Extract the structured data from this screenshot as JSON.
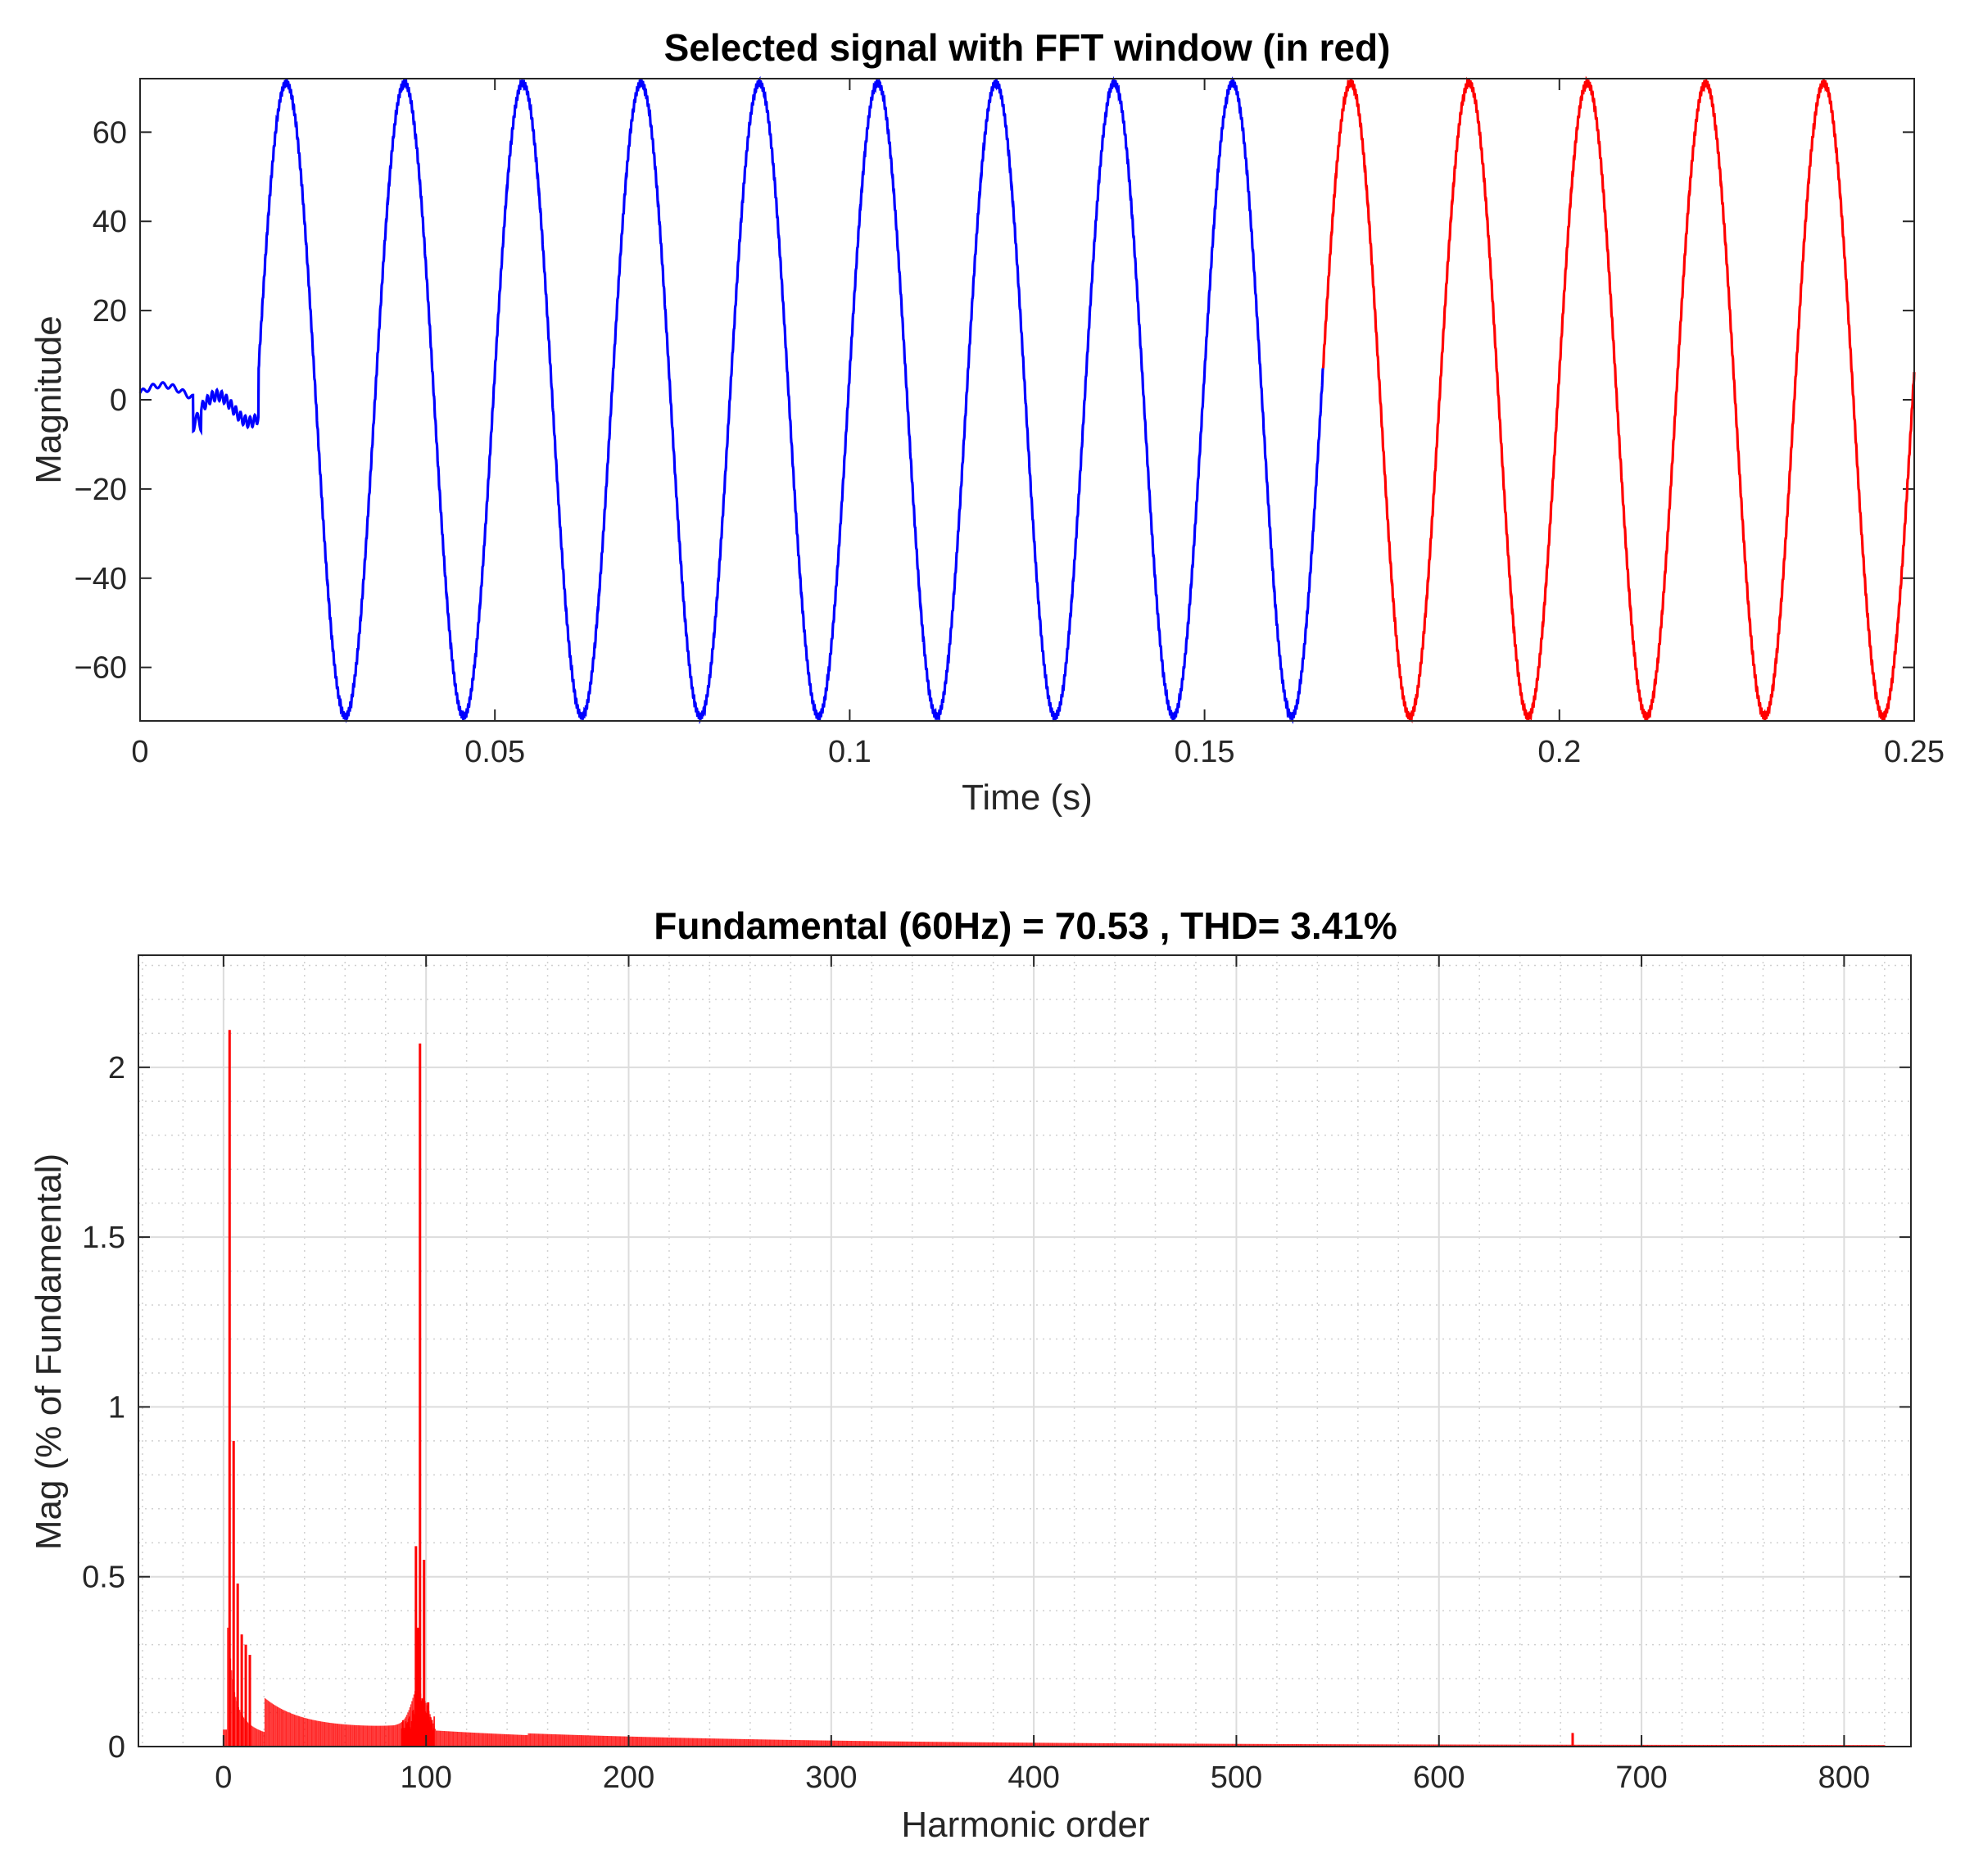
{
  "chart_data": [
    {
      "type": "line",
      "title": "Selected signal with FFT window (in red)",
      "xlabel": "Time (s)",
      "ylabel": "Magnitude",
      "xlim": [
        0,
        0.25
      ],
      "ylim": [
        -72,
        72
      ],
      "grid": false,
      "x_ticks": [
        "0",
        "0.05",
        "0.1",
        "0.15",
        "0.2",
        "0.25"
      ],
      "y_ticks": [
        "−60",
        "−40",
        "−20",
        "0",
        "20",
        "40",
        "60"
      ],
      "series": [
        {
          "color": "#0000ff",
          "x_range": [
            0,
            0.1667
          ],
          "description_values": {
            "frequency_hz": 60,
            "amplitude": 71,
            "onset_time_s": 0.0167,
            "pre_onset_level": [
              -5,
              3
            ]
          }
        },
        {
          "color": "#ff0000",
          "x_range": [
            0.1667,
            0.25
          ],
          "description_values": {
            "frequency_hz": 60,
            "amplitude": 71
          }
        }
      ]
    },
    {
      "type": "bar",
      "title": "Fundamental (60Hz) = 70.53 , THD= 3.41%",
      "xlabel": "Harmonic order",
      "ylabel": "Mag (% of Fundamental)",
      "xlim": [
        -42,
        833
      ],
      "ylim": [
        0,
        2.33
      ],
      "grid": true,
      "x_ticks": [
        "0",
        "100",
        "200",
        "300",
        "400",
        "500",
        "600",
        "700",
        "800"
      ],
      "y_ticks": [
        "0",
        "0.5",
        "1",
        "1.5",
        "2"
      ],
      "color": "#ff0000",
      "peaks": [
        {
          "x": 3,
          "y": 2.11
        },
        {
          "x": 5,
          "y": 0.9
        },
        {
          "x": 7,
          "y": 0.48
        },
        {
          "x": 9,
          "y": 0.33
        },
        {
          "x": 11,
          "y": 0.3
        },
        {
          "x": 13,
          "y": 0.27
        },
        {
          "x": 95,
          "y": 0.59
        },
        {
          "x": 97,
          "y": 2.07
        },
        {
          "x": 99,
          "y": 0.55
        },
        {
          "x": 101,
          "y": 0.13
        },
        {
          "x": 666,
          "y": 0.04
        }
      ]
    }
  ]
}
